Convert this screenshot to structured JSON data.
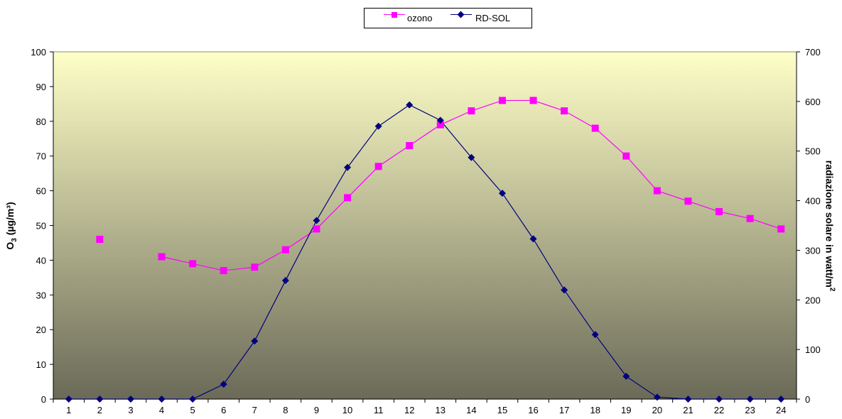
{
  "chart_data": {
    "type": "line",
    "categories": [
      "1",
      "2",
      "3",
      "4",
      "5",
      "6",
      "7",
      "8",
      "9",
      "10",
      "11",
      "12",
      "13",
      "14",
      "15",
      "16",
      "17",
      "18",
      "19",
      "20",
      "21",
      "22",
      "23",
      "24"
    ],
    "series": [
      {
        "name": "ozono",
        "axis": "left",
        "color": "#ff00ff",
        "marker": "square",
        "values": [
          null,
          46,
          null,
          41,
          39,
          37,
          38,
          43,
          49,
          58,
          67,
          73,
          79,
          83,
          86,
          86,
          83,
          78,
          70,
          60,
          57,
          54,
          52,
          49
        ]
      },
      {
        "name": "RD-SOL",
        "axis": "right",
        "color": "#000080",
        "marker": "diamond",
        "values": [
          0,
          0,
          0,
          0,
          0,
          30,
          117,
          239,
          360,
          467,
          550,
          593,
          562,
          487,
          415,
          323,
          220,
          130,
          46,
          4,
          0,
          0,
          0,
          0
        ]
      }
    ],
    "ylabel_left_main": "O",
    "ylabel_left_sub": "3",
    "ylabel_left_unit": " (µg/m³)",
    "ylabel_right_main": "radiazione solare in watt/m",
    "ylabel_right_sup": "2",
    "ylim_left": [
      0,
      100
    ],
    "yticks_left": [
      0,
      10,
      20,
      30,
      40,
      50,
      60,
      70,
      80,
      90,
      100
    ],
    "ylim_right": [
      0,
      700
    ],
    "yticks_right": [
      0,
      100,
      200,
      300,
      400,
      500,
      600,
      700
    ],
    "legend_position": "top-center",
    "background_gradient": [
      "#ffffc8",
      "#6b6a58"
    ]
  }
}
